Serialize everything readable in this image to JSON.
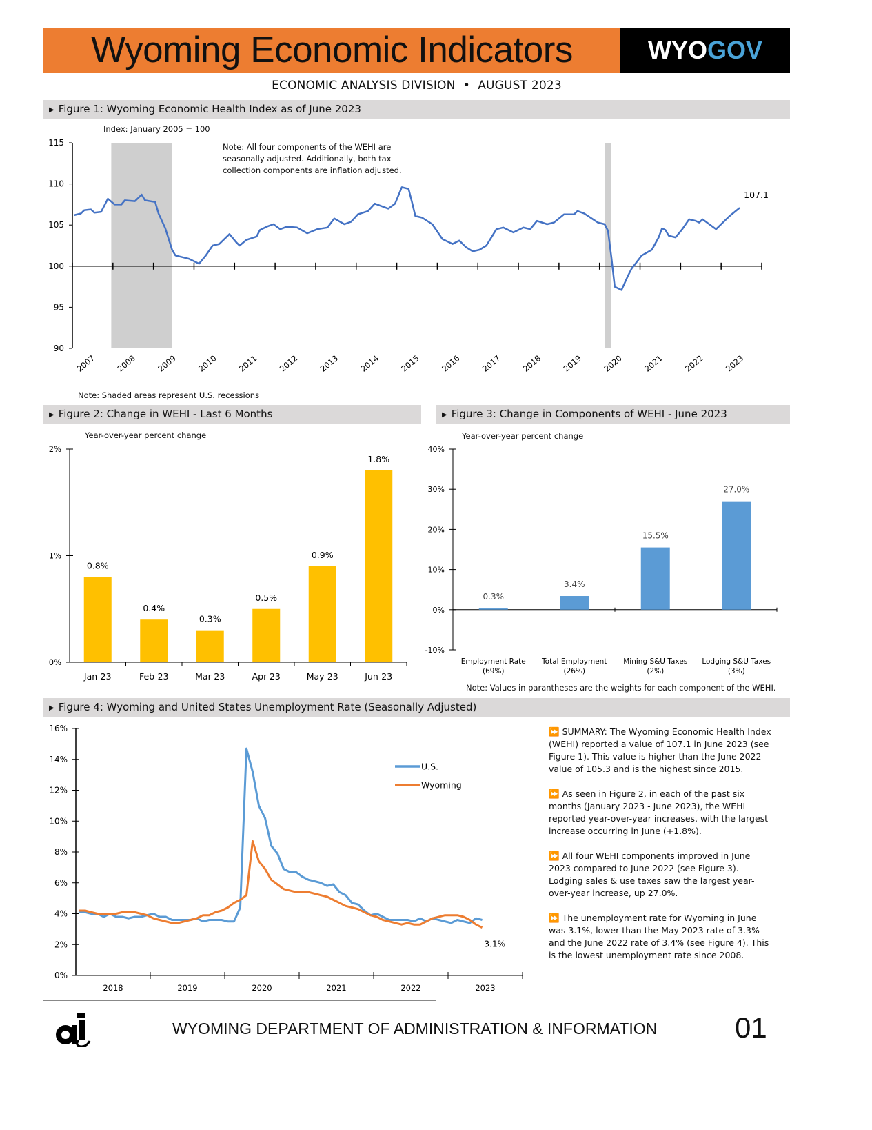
{
  "header": {
    "title": "Wyoming Economic Indicators",
    "logo_part1": "WYO",
    "logo_part2": "GOV",
    "subtitle": "ECONOMIC ANALYSIS DIVISION  •  AUGUST 2023",
    "banner_color": "#ed7d31",
    "logo_accent_color": "#4aa3d8"
  },
  "figures": {
    "fig1_title": "Figure 1: Wyoming Economic Health Index as of June 2023",
    "fig2_title": "Figure 2: Change in WEHI - Last 6 Months",
    "fig3_title": "Figure 3: Change in Components of WEHI - June 2023",
    "fig4_title": "Figure 4: Wyoming and United States Unemployment Rate (Seasonally Adjusted)",
    "fig1_index_note": "Index: January 2005 = 100",
    "fig1_note": "Note: All four components of the WEHI are seasonally adjusted. Additionally, both tax collection components are inflation adjusted.",
    "fig1_shade_note": "Note: Shaded areas represent U.S. recessions",
    "fig2_ylabel": "Year-over-year percent change",
    "fig3_ylabel": "Year-over-year percent change",
    "fig3_note": "Note: Values in parantheses are the weights for each component of the WEHI."
  },
  "chart_data": [
    {
      "id": "fig1",
      "type": "line",
      "ylim": [
        90,
        115
      ],
      "yticks": [
        90,
        95,
        100,
        105,
        110,
        115
      ],
      "xticks": [
        "2007",
        "2008",
        "2009",
        "2010",
        "2011",
        "2012",
        "2013",
        "2014",
        "2015",
        "2016",
        "2017",
        "2018",
        "2019",
        "2020",
        "2021",
        "2022",
        "2023"
      ],
      "x_axis_crosses_at": 100,
      "line_color": "#4472c4",
      "recessions": [
        [
          "2007-12",
          "2009-06"
        ],
        [
          "2020-02",
          "2020-04"
        ]
      ],
      "end_label": "107.1",
      "points": [
        [
          "2007-01",
          106.2
        ],
        [
          "2007-03",
          106.4
        ],
        [
          "2007-04",
          106.8
        ],
        [
          "2007-06",
          106.9
        ],
        [
          "2007-07",
          106.5
        ],
        [
          "2007-09",
          106.6
        ],
        [
          "2007-11",
          108.2
        ],
        [
          "2008-01",
          107.5
        ],
        [
          "2008-03",
          107.5
        ],
        [
          "2008-04",
          108.0
        ],
        [
          "2008-07",
          107.9
        ],
        [
          "2008-09",
          108.7
        ],
        [
          "2008-10",
          108.0
        ],
        [
          "2009-01",
          107.8
        ],
        [
          "2009-02",
          106.4
        ],
        [
          "2009-04",
          104.6
        ],
        [
          "2009-06",
          102.0
        ],
        [
          "2009-07",
          101.3
        ],
        [
          "2009-09",
          101.1
        ],
        [
          "2009-11",
          100.9
        ],
        [
          "2010-02",
          100.3
        ],
        [
          "2010-04",
          101.3
        ],
        [
          "2010-06",
          102.5
        ],
        [
          "2010-08",
          102.7
        ],
        [
          "2010-11",
          103.9
        ],
        [
          "2011-01",
          102.9
        ],
        [
          "2011-02",
          102.5
        ],
        [
          "2011-04",
          103.2
        ],
        [
          "2011-07",
          103.6
        ],
        [
          "2011-08",
          104.4
        ],
        [
          "2011-10",
          104.8
        ],
        [
          "2011-12",
          105.1
        ],
        [
          "2012-02",
          104.5
        ],
        [
          "2012-04",
          104.8
        ],
        [
          "2012-07",
          104.7
        ],
        [
          "2012-10",
          104.0
        ],
        [
          "2013-01",
          104.5
        ],
        [
          "2013-04",
          104.7
        ],
        [
          "2013-06",
          105.8
        ],
        [
          "2013-09",
          105.1
        ],
        [
          "2013-11",
          105.4
        ],
        [
          "2014-01",
          106.3
        ],
        [
          "2014-04",
          106.7
        ],
        [
          "2014-06",
          107.6
        ],
        [
          "2014-10",
          107.0
        ],
        [
          "2014-12",
          107.6
        ],
        [
          "2015-02",
          109.6
        ],
        [
          "2015-04",
          109.4
        ],
        [
          "2015-05",
          107.8
        ],
        [
          "2015-06",
          106.1
        ],
        [
          "2015-08",
          105.9
        ],
        [
          "2015-11",
          105.1
        ],
        [
          "2016-02",
          103.3
        ],
        [
          "2016-05",
          102.7
        ],
        [
          "2016-07",
          103.1
        ],
        [
          "2016-09",
          102.3
        ],
        [
          "2016-11",
          101.8
        ],
        [
          "2017-01",
          102.0
        ],
        [
          "2017-03",
          102.5
        ],
        [
          "2017-06",
          104.5
        ],
        [
          "2017-08",
          104.7
        ],
        [
          "2017-11",
          104.1
        ],
        [
          "2018-02",
          104.7
        ],
        [
          "2018-04",
          104.5
        ],
        [
          "2018-06",
          105.5
        ],
        [
          "2018-09",
          105.1
        ],
        [
          "2018-11",
          105.3
        ],
        [
          "2019-02",
          106.3
        ],
        [
          "2019-05",
          106.3
        ],
        [
          "2019-06",
          106.7
        ],
        [
          "2019-08",
          106.4
        ],
        [
          "2019-12",
          105.3
        ],
        [
          "2020-02",
          105.1
        ],
        [
          "2020-03",
          104.3
        ],
        [
          "2020-04",
          101.1
        ],
        [
          "2020-05",
          97.5
        ],
        [
          "2020-07",
          97.1
        ],
        [
          "2020-09",
          98.9
        ],
        [
          "2020-10",
          99.7
        ],
        [
          "2021-01",
          101.3
        ],
        [
          "2021-04",
          102.0
        ],
        [
          "2021-06",
          103.5
        ],
        [
          "2021-07",
          104.6
        ],
        [
          "2021-08",
          104.4
        ],
        [
          "2021-09",
          103.7
        ],
        [
          "2021-11",
          103.5
        ],
        [
          "2022-01",
          104.5
        ],
        [
          "2022-03",
          105.7
        ],
        [
          "2022-05",
          105.5
        ],
        [
          "2022-06",
          105.3
        ],
        [
          "2022-07",
          105.7
        ],
        [
          "2022-11",
          104.5
        ],
        [
          "2023-01",
          105.3
        ],
        [
          "2023-03",
          106.1
        ],
        [
          "2023-06",
          107.1
        ]
      ]
    },
    {
      "id": "fig2",
      "type": "bar",
      "categories": [
        "Jan-23",
        "Feb-23",
        "Mar-23",
        "Apr-23",
        "May-23",
        "Jun-23"
      ],
      "values": [
        0.8,
        0.4,
        0.3,
        0.5,
        0.9,
        1.8
      ],
      "labels": [
        "0.8%",
        "0.4%",
        "0.3%",
        "0.5%",
        "0.9%",
        "1.8%"
      ],
      "ylabel": "Year-over-year percent change",
      "ylim": [
        0,
        2
      ],
      "yticks": [
        "0%",
        "1%",
        "2%"
      ],
      "bar_color": "#ffc000"
    },
    {
      "id": "fig3",
      "type": "bar",
      "categories": [
        {
          "name": "Employment Rate",
          "weight": "(69%)"
        },
        {
          "name": "Total Employment",
          "weight": "(26%)"
        },
        {
          "name": "Mining S&U Taxes",
          "weight": "(2%)"
        },
        {
          "name": "Lodging S&U Taxes",
          "weight": "(3%)"
        }
      ],
      "values": [
        0.3,
        3.4,
        15.5,
        27.0
      ],
      "labels": [
        "0.3%",
        "3.4%",
        "15.5%",
        "27.0%"
      ],
      "ylabel": "Year-over-year percent change",
      "ylim": [
        -10,
        40
      ],
      "yticks": [
        "-10%",
        "0%",
        "10%",
        "20%",
        "30%",
        "40%"
      ],
      "bar_color": "#5b9bd5"
    },
    {
      "id": "fig4",
      "type": "line",
      "start": "2018-01",
      "xticks": [
        "2018",
        "2019",
        "2020",
        "2021",
        "2022",
        "2023"
      ],
      "ylim": [
        0,
        16
      ],
      "yticks": [
        "0%",
        "2%",
        "4%",
        "6%",
        "8%",
        "10%",
        "12%",
        "14%",
        "16%"
      ],
      "legend": "right",
      "end_label": "3.1%",
      "series": [
        {
          "name": "U.S.",
          "color": "#5b9bd5",
          "values": [
            4.1,
            4.1,
            4.0,
            4.0,
            3.8,
            4.0,
            3.8,
            3.8,
            3.7,
            3.8,
            3.8,
            3.9,
            4.0,
            3.8,
            3.8,
            3.6,
            3.6,
            3.6,
            3.6,
            3.7,
            3.5,
            3.6,
            3.6,
            3.6,
            3.5,
            3.5,
            4.4,
            14.7,
            13.2,
            11.0,
            10.2,
            8.4,
            7.9,
            6.9,
            6.7,
            6.7,
            6.4,
            6.2,
            6.1,
            6.0,
            5.8,
            5.9,
            5.4,
            5.2,
            4.7,
            4.6,
            4.2,
            3.9,
            4.0,
            3.8,
            3.6,
            3.6,
            3.6,
            3.6,
            3.5,
            3.7,
            3.5,
            3.7,
            3.6,
            3.5,
            3.4,
            3.6,
            3.5,
            3.4,
            3.7,
            3.6
          ]
        },
        {
          "name": "Wyoming",
          "color": "#ed7d31",
          "values": [
            4.2,
            4.2,
            4.1,
            4.0,
            4.0,
            4.0,
            4.0,
            4.1,
            4.1,
            4.1,
            4.0,
            3.9,
            3.7,
            3.6,
            3.5,
            3.4,
            3.4,
            3.5,
            3.6,
            3.7,
            3.9,
            3.9,
            4.1,
            4.2,
            4.4,
            4.7,
            4.9,
            5.2,
            8.7,
            7.4,
            6.9,
            6.2,
            5.9,
            5.6,
            5.5,
            5.4,
            5.4,
            5.4,
            5.3,
            5.2,
            5.1,
            4.9,
            4.7,
            4.5,
            4.4,
            4.3,
            4.1,
            3.9,
            3.8,
            3.6,
            3.5,
            3.4,
            3.3,
            3.4,
            3.3,
            3.3,
            3.5,
            3.7,
            3.8,
            3.9,
            3.9,
            3.9,
            3.8,
            3.6,
            3.3,
            3.1
          ]
        }
      ]
    }
  ],
  "summary": [
    "SUMMARY: The Wyoming Economic Health Index (WEHI) reported a value of 107.1 in June 2023 (see Figure 1). This value is higher than the June 2022 value of 105.3 and is the highest since 2015.",
    "As seen in Figure 2, in each of the past six months (January 2023 - June 2023), the WEHI reported year-over-year increases, with the largest increase occurring in June (+1.8%).",
    "All four WEHI components improved in June 2023 compared to June 2022 (see Figure 3). Lodging sales & use taxes saw the largest year-over-year increase, up 27.0%.",
    "The unemployment rate for Wyoming in June was 3.1%, lower than the May 2023 rate of 3.3% and the June 2022 rate of 3.4% (see Figure 4). This is the lowest unemployment rate since 2008."
  ],
  "summary_bullet": "⏩",
  "footer": {
    "logo_text": "a&i",
    "department": "WYOMING DEPARTMENT OF ADMINISTRATION & INFORMATION",
    "page_number": "01"
  }
}
